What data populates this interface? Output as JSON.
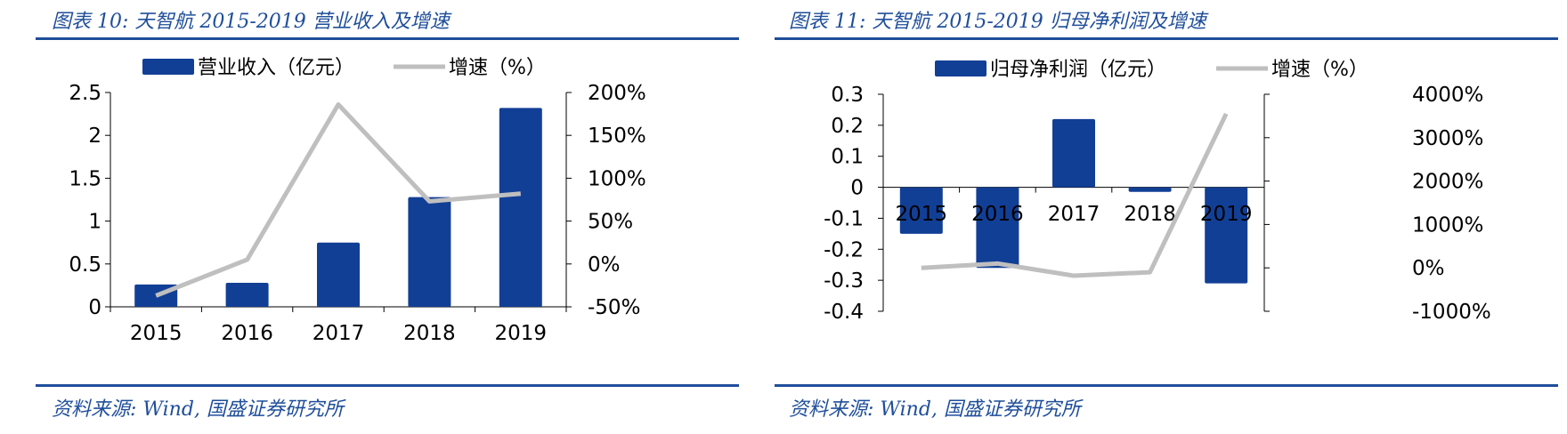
{
  "panels": [
    {
      "title": "图表 10:  天智航 2015-2019 营业收入及增速",
      "source": "资料来源: Wind, 国盛证券研究所"
    },
    {
      "title": "图表 11:  天智航 2015-2019 归母净利润及增速",
      "source": "资料来源: Wind, 国盛证券研究所"
    }
  ],
  "colors": {
    "bar": "#123f96",
    "line": "#bfbfbf",
    "accent": "#1f4e9a",
    "axis": "#000000"
  },
  "chart_data": [
    {
      "type": "bar",
      "title": "",
      "categories": [
        "2015",
        "2016",
        "2017",
        "2018",
        "2019"
      ],
      "series": [
        {
          "name": "营业收入（亿元）",
          "type": "bar",
          "axis": "left",
          "values": [
            0.26,
            0.28,
            0.75,
            1.28,
            2.32
          ]
        },
        {
          "name": "增速（%）",
          "type": "line",
          "axis": "right",
          "values": [
            -37,
            5,
            186,
            73,
            82
          ]
        }
      ],
      "left_axis": {
        "ticks": [
          "0",
          "0.5",
          "1",
          "1.5",
          "2",
          "2.5"
        ],
        "ylim": [
          0,
          2.5
        ]
      },
      "right_axis": {
        "ticks": [
          "-50%",
          "0%",
          "50%",
          "100%",
          "150%",
          "200%"
        ],
        "ylim": [
          -50,
          200
        ]
      },
      "legend": "top-center",
      "grid": false
    },
    {
      "type": "bar",
      "title": "",
      "categories": [
        "2015",
        "2016",
        "2017",
        "2018",
        "2019"
      ],
      "series": [
        {
          "name": "归母净利润（亿元）",
          "type": "bar",
          "axis": "left",
          "values": [
            -0.15,
            -0.26,
            0.22,
            -0.015,
            -0.31
          ]
        },
        {
          "name": "增速（%）",
          "type": "line",
          "axis": "right",
          "values": [
            0,
            100,
            -180,
            -100,
            3550
          ]
        }
      ],
      "left_axis": {
        "ticks": [
          "-0.4",
          "-0.3",
          "-0.2",
          "-0.1",
          "0",
          "0.1",
          "0.2",
          "0.3"
        ],
        "ylim": [
          -0.4,
          0.3
        ]
      },
      "right_axis": {
        "ticks": [
          "-1000%",
          "0%",
          "1000%",
          "2000%",
          "3000%",
          "4000%"
        ],
        "ylim": [
          -1000,
          4000
        ]
      },
      "legend": "top-center",
      "grid": false
    }
  ]
}
